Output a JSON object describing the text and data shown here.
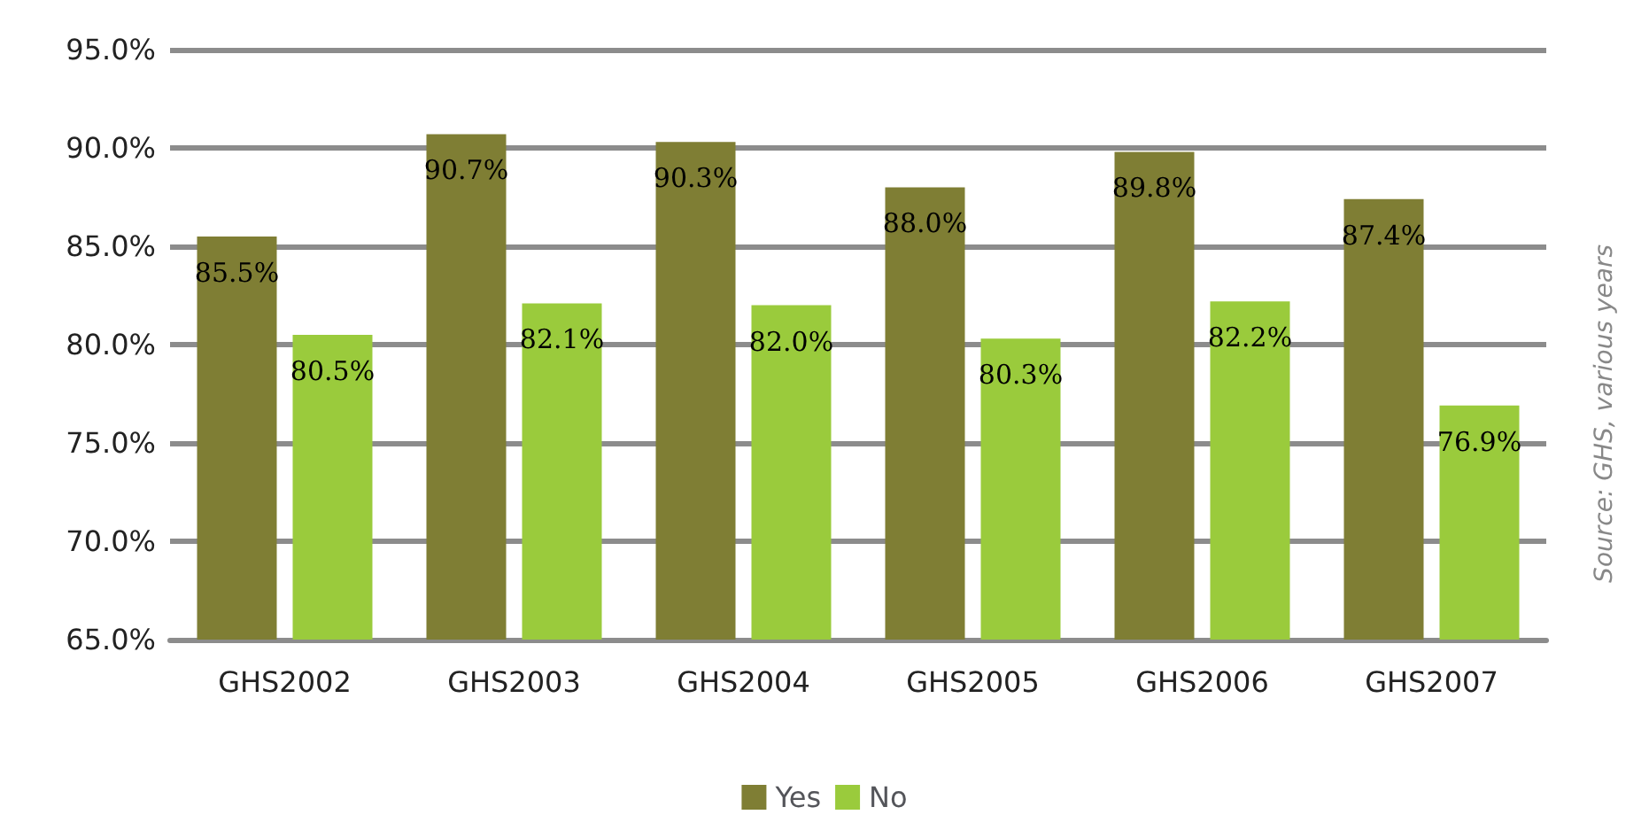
{
  "chart_data": {
    "type": "bar",
    "categories": [
      "GHS2002",
      "GHS2003",
      "GHS2004",
      "GHS2005",
      "GHS2006",
      "GHS2007"
    ],
    "series": [
      {
        "name": "Yes",
        "color": "#7f7e34",
        "values": [
          85.5,
          90.7,
          90.3,
          88.0,
          89.8,
          87.4
        ],
        "value_labels": [
          "85.5%",
          "90.7%",
          "90.3%",
          "88.0%",
          "89.8%",
          "87.4%"
        ]
      },
      {
        "name": "No",
        "color": "#9acb3c",
        "values": [
          80.5,
          82.1,
          82.0,
          80.3,
          82.2,
          76.9
        ],
        "value_labels": [
          "80.5%",
          "82.1%",
          "82.0%",
          "80.3%",
          "82.2%",
          "76.9%"
        ]
      }
    ],
    "ylim": [
      65,
      95
    ],
    "yticks": [
      {
        "value": 65,
        "label": "65.0%"
      },
      {
        "value": 70,
        "label": "70.0%"
      },
      {
        "value": 75,
        "label": "75.0%"
      },
      {
        "value": 80,
        "label": "80.0%"
      },
      {
        "value": 85,
        "label": "85.0%"
      },
      {
        "value": 90,
        "label": "90.0%"
      },
      {
        "value": 95,
        "label": "95.0%"
      }
    ],
    "grid": "y",
    "legend": "bottom",
    "annotations": [
      "Source: GHS, various years"
    ]
  }
}
